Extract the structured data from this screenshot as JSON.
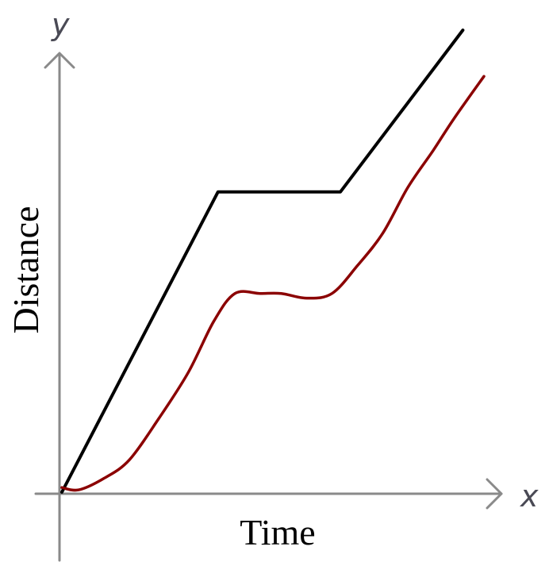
{
  "chart_data": {
    "type": "line",
    "xlabel": "Time",
    "ylabel": "Distance",
    "x_axis_symbol": "x",
    "y_axis_symbol": "y",
    "xlim": [
      0,
      10
    ],
    "ylim": [
      0,
      10
    ],
    "grid": false,
    "series": [
      {
        "color": "#000000",
        "x": [
          0,
          3.7,
          6.6,
          9.5
        ],
        "y": [
          0,
          6.5,
          6.5,
          10
        ]
      },
      {
        "color": "#8b0000",
        "x": [
          0,
          0.4,
          1.0,
          1.6,
          2.3,
          3.0,
          3.6,
          4.1,
          4.7,
          5.2,
          5.8,
          6.4,
          7.0,
          7.6,
          8.2,
          8.8,
          9.3,
          10.0
        ],
        "y": [
          0.1,
          0.05,
          0.3,
          0.7,
          1.6,
          2.6,
          3.7,
          4.3,
          4.3,
          4.3,
          4.2,
          4.3,
          4.9,
          5.6,
          6.6,
          7.4,
          8.1,
          9.0
        ]
      }
    ]
  }
}
